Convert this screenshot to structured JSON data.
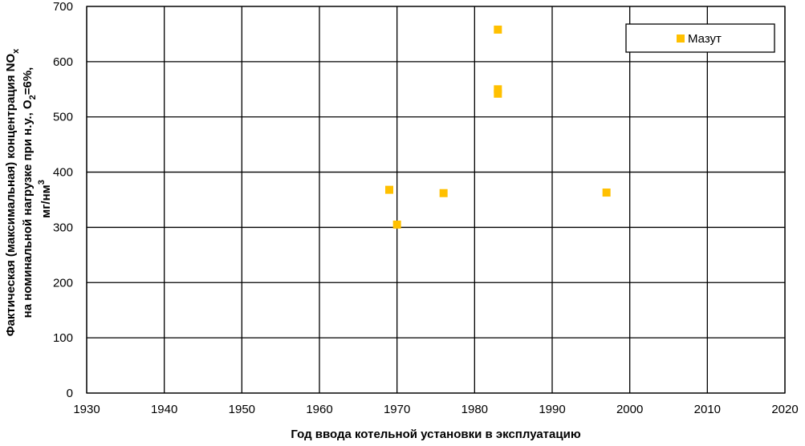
{
  "chart_data": {
    "type": "scatter",
    "x_label": "Год ввода котельной установки в эксплуатацию",
    "y_label_lines": [
      [
        "Фактическая (максимальная) концентрация NO",
        "x"
      ],
      [
        "на номинальной нагрузке при н.у., O",
        "2",
        "=6%,"
      ],
      [
        "мг/нм",
        "3"
      ]
    ],
    "series": [
      {
        "name": "Мазут",
        "color": "#ffc000",
        "x": [
          1969,
          1970,
          1976,
          1983,
          1983,
          1983,
          1997
        ],
        "values": [
          368,
          305,
          362,
          658,
          550,
          542,
          363
        ]
      }
    ],
    "xlim": [
      1930,
      2020
    ],
    "xticks": [
      1930,
      1940,
      1950,
      1960,
      1970,
      1980,
      1990,
      2000,
      2010,
      2020
    ],
    "ylim": [
      0,
      700
    ],
    "yticks": [
      0,
      100,
      200,
      300,
      400,
      500,
      600,
      700
    ],
    "grid": true,
    "legend": "upper right"
  }
}
